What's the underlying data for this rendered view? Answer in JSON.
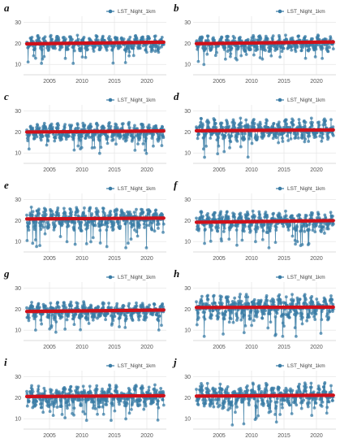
{
  "chart_data": [
    {
      "panel": "a",
      "type": "line",
      "series": [
        {
          "name": "LST_Night_1km",
          "color": "#3a7ca5"
        }
      ],
      "trend": {
        "color": "#d0101a",
        "start": 19.8,
        "end": 20.6
      },
      "x_ticks": [
        "2005",
        "2010",
        "2015",
        "2020"
      ],
      "xlim": [
        2001,
        2023
      ],
      "y_ticks": [
        "10",
        "20",
        "30"
      ],
      "ylim": [
        5,
        33
      ],
      "mean": 20,
      "spread": 3.5,
      "grid": true,
      "legend": "top-right"
    },
    {
      "panel": "b",
      "type": "line",
      "series": [
        {
          "name": "LST_Night_1km",
          "color": "#3a7ca5"
        }
      ],
      "trend": {
        "color": "#d0101a",
        "start": 19.9,
        "end": 20.7
      },
      "x_ticks": [
        "2005",
        "2010",
        "2015",
        "2020"
      ],
      "xlim": [
        2001,
        2023
      ],
      "y_ticks": [
        "10",
        "20",
        "30"
      ],
      "ylim": [
        5,
        33
      ],
      "mean": 20,
      "spread": 3.5,
      "grid": true,
      "legend": "top-right"
    },
    {
      "panel": "c",
      "type": "line",
      "series": [
        {
          "name": "LST_Night_1km",
          "color": "#3a7ca5"
        }
      ],
      "trend": {
        "color": "#d0101a",
        "start": 20.0,
        "end": 20.5
      },
      "x_ticks": [
        "2005",
        "2010",
        "2015",
        "2020"
      ],
      "xlim": [
        2001,
        2023
      ],
      "y_ticks": [
        "10",
        "20",
        "30"
      ],
      "ylim": [
        5,
        33
      ],
      "mean": 20,
      "spread": 4,
      "grid": true,
      "legend": "top-right"
    },
    {
      "panel": "d",
      "type": "line",
      "series": [
        {
          "name": "LST_Night_1km",
          "color": "#3a7ca5"
        }
      ],
      "trend": {
        "color": "#d0101a",
        "start": 20.6,
        "end": 21.0
      },
      "x_ticks": [
        "2005",
        "2010",
        "2015",
        "2020"
      ],
      "xlim": [
        2001,
        2023
      ],
      "y_ticks": [
        "10",
        "20",
        "30"
      ],
      "ylim": [
        5,
        33
      ],
      "mean": 21,
      "spread": 5,
      "grid": true,
      "legend": "top-right"
    },
    {
      "panel": "e",
      "type": "line",
      "series": [
        {
          "name": "LST_Night_1km",
          "color": "#3a7ca5"
        }
      ],
      "trend": {
        "color": "#d0101a",
        "start": 20.8,
        "end": 21.2
      },
      "x_ticks": [
        "2005",
        "2010",
        "2015",
        "2020"
      ],
      "xlim": [
        2001,
        2023
      ],
      "y_ticks": [
        "10",
        "20",
        "30"
      ],
      "ylim": [
        5,
        33
      ],
      "mean": 21,
      "spread": 5,
      "grid": true,
      "legend": "top-right"
    },
    {
      "panel": "f",
      "type": "line",
      "series": [
        {
          "name": "LST_Night_1km",
          "color": "#3a7ca5"
        }
      ],
      "trend": {
        "color": "#d0101a",
        "start": 19.2,
        "end": 20.0
      },
      "x_ticks": [
        "2005",
        "2010",
        "2015",
        "2020"
      ],
      "xlim": [
        2001,
        2023
      ],
      "y_ticks": [
        "10",
        "20",
        "30"
      ],
      "ylim": [
        5,
        33
      ],
      "mean": 19.5,
      "spread": 4.5,
      "grid": true,
      "legend": "top-right"
    },
    {
      "panel": "g",
      "type": "line",
      "series": [
        {
          "name": "LST_Night_1km",
          "color": "#3a7ca5"
        }
      ],
      "trend": {
        "color": "#d0101a",
        "start": 18.9,
        "end": 19.6
      },
      "x_ticks": [
        "2005",
        "2010",
        "2015",
        "2020"
      ],
      "xlim": [
        2001,
        2023
      ],
      "y_ticks": [
        "10",
        "20",
        "30"
      ],
      "ylim": [
        5,
        33
      ],
      "mean": 19,
      "spread": 4,
      "grid": true,
      "legend": "top-right"
    },
    {
      "panel": "h",
      "type": "line",
      "series": [
        {
          "name": "LST_Night_1km",
          "color": "#3a7ca5"
        }
      ],
      "trend": {
        "color": "#d0101a",
        "start": 20.8,
        "end": 21.0
      },
      "x_ticks": [
        "2005",
        "2010",
        "2015",
        "2020"
      ],
      "xlim": [
        2001,
        2023
      ],
      "y_ticks": [
        "10",
        "20",
        "30"
      ],
      "ylim": [
        5,
        33
      ],
      "mean": 21,
      "spread": 5.5,
      "grid": true,
      "legend": "top-right"
    },
    {
      "panel": "i",
      "type": "line",
      "series": [
        {
          "name": "LST_Night_1km",
          "color": "#3a7ca5"
        }
      ],
      "trend": {
        "color": "#d0101a",
        "start": 20.6,
        "end": 21.0
      },
      "x_ticks": [
        "2005",
        "2010",
        "2015",
        "2020"
      ],
      "xlim": [
        2001,
        2023
      ],
      "y_ticks": [
        "10",
        "20",
        "30"
      ],
      "ylim": [
        5,
        33
      ],
      "mean": 20.5,
      "spread": 5,
      "grid": true,
      "legend": "top-right"
    },
    {
      "panel": "j",
      "type": "line",
      "series": [
        {
          "name": "LST_Night_1km",
          "color": "#3a7ca5"
        }
      ],
      "trend": {
        "color": "#d0101a",
        "start": 20.8,
        "end": 21.2
      },
      "x_ticks": [
        "2005",
        "2010",
        "2015",
        "2020"
      ],
      "xlim": [
        2001,
        2023
      ],
      "y_ticks": [
        "10",
        "20",
        "30"
      ],
      "ylim": [
        5,
        33
      ],
      "mean": 21,
      "spread": 5.5,
      "grid": true,
      "legend": "top-right"
    }
  ]
}
